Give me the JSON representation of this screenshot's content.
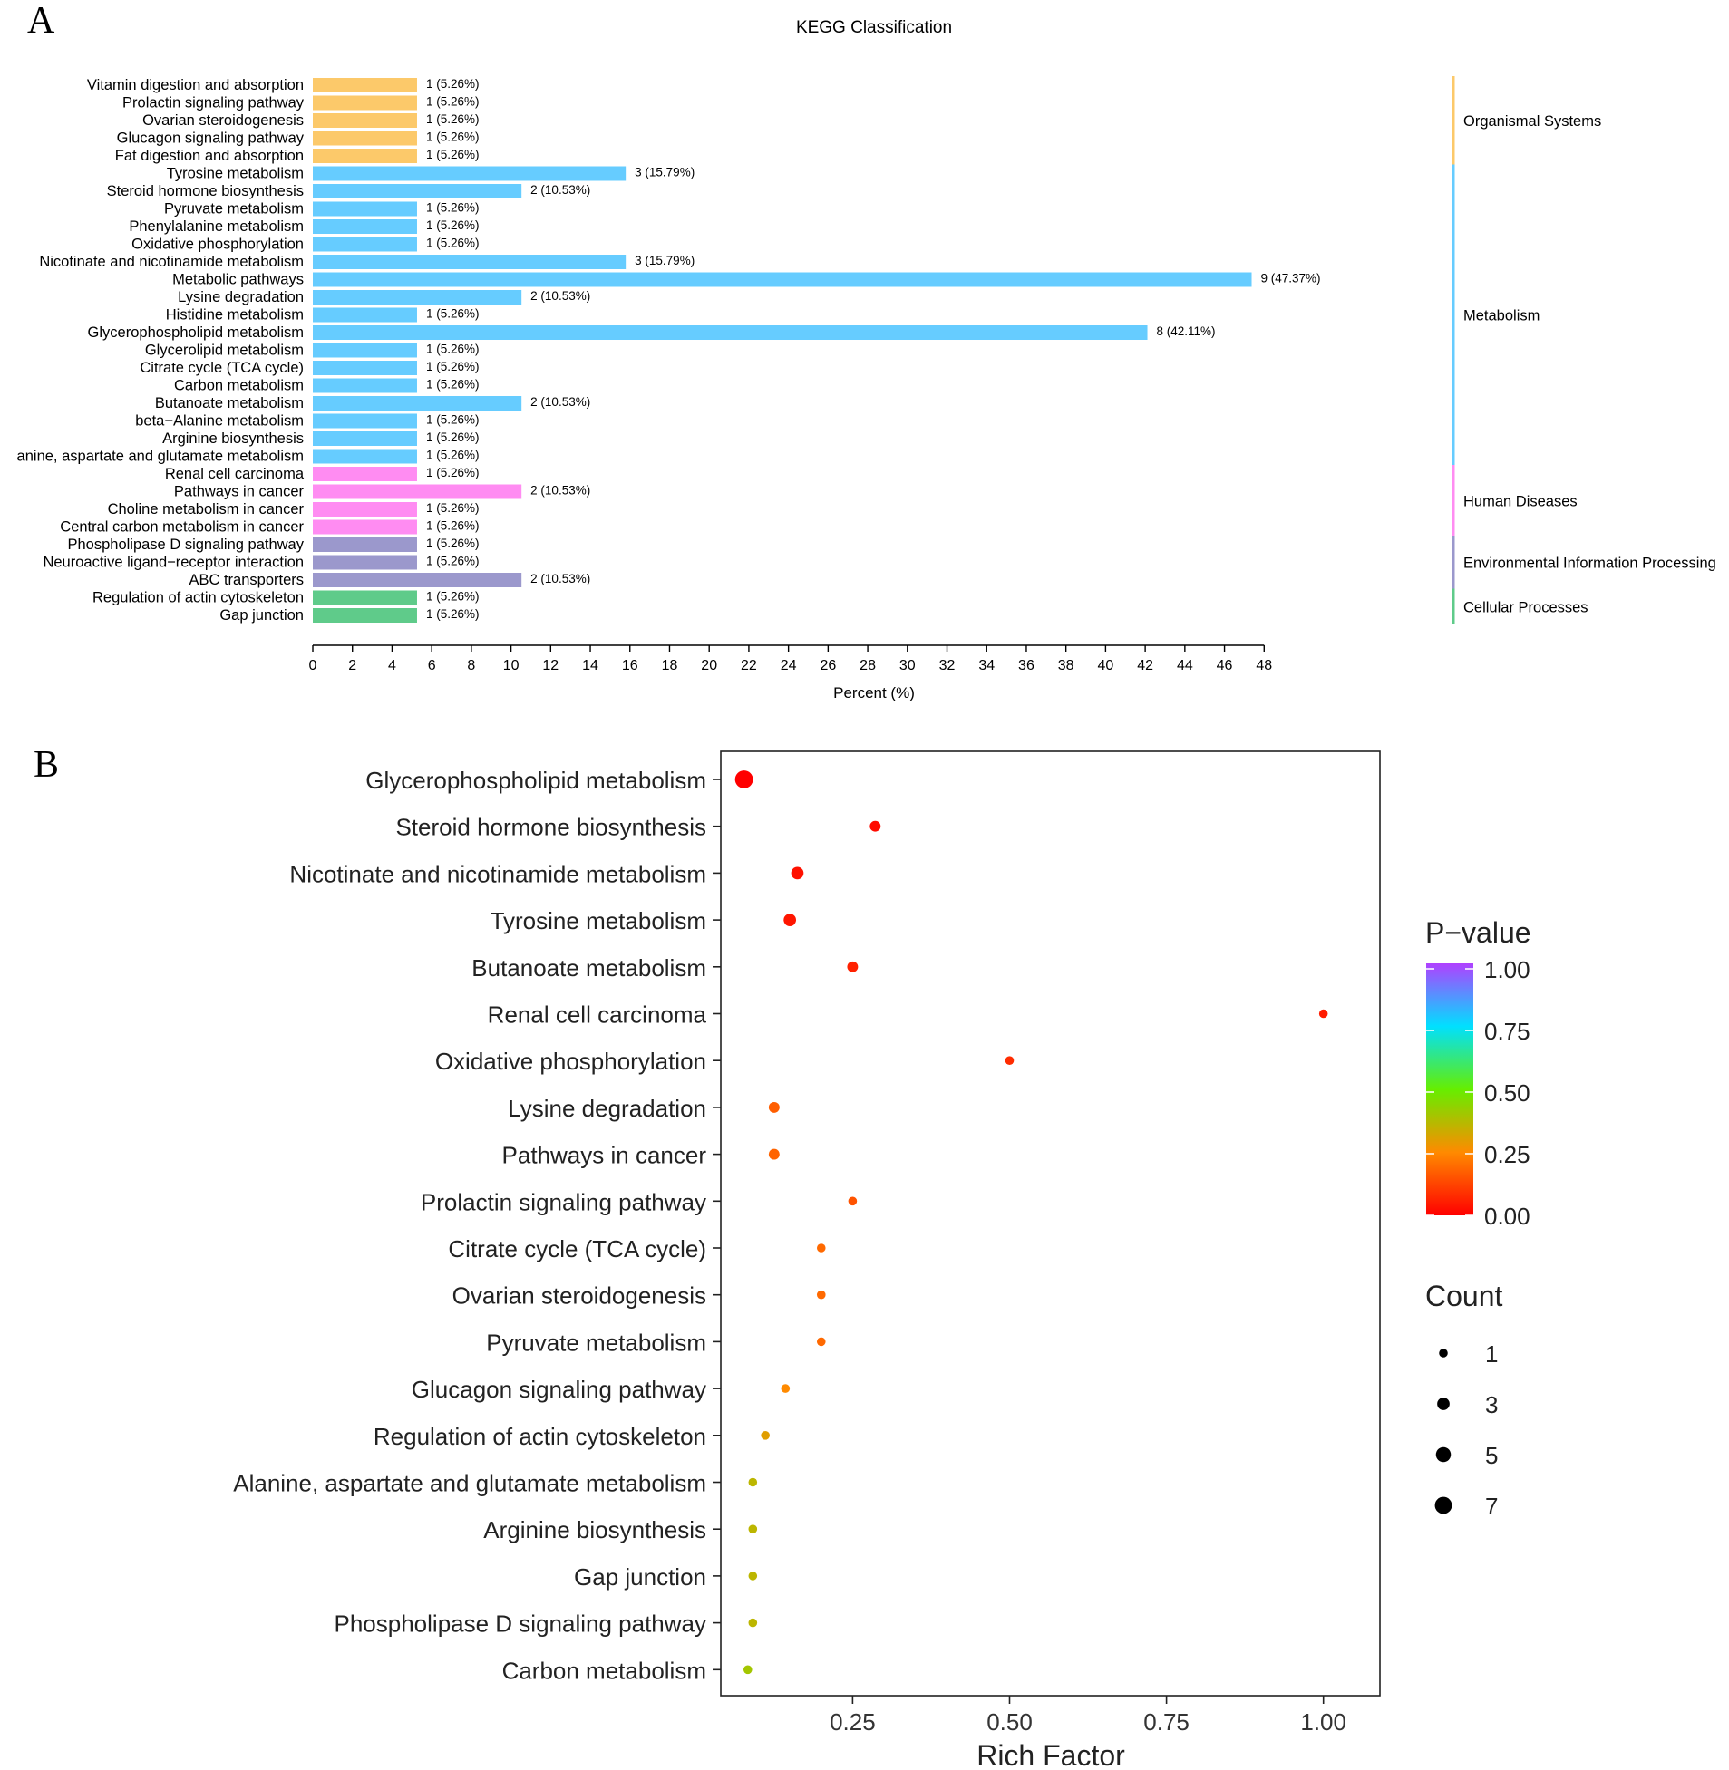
{
  "panels": {
    "a_label": "A",
    "b_label": "B"
  },
  "colors": {
    "organismal": "#FCC96A",
    "metabolism": "#66CCFF",
    "human": "#FF8CF2",
    "environmental": "#9B98CC",
    "cellular": "#5FCB8A"
  },
  "chart_data": [
    {
      "type": "bar",
      "orientation": "horizontal",
      "title": "KEGG Classification",
      "xlabel": "Percent (%)",
      "xlim": [
        0,
        48
      ],
      "xticks": [
        0,
        2,
        4,
        6,
        8,
        10,
        12,
        14,
        16,
        18,
        20,
        22,
        24,
        26,
        28,
        30,
        32,
        34,
        36,
        38,
        40,
        42,
        44,
        46,
        48
      ],
      "groups": [
        {
          "name": "Organismal Systems",
          "color": "#FCC96A"
        },
        {
          "name": "Metabolism",
          "color": "#66CCFF"
        },
        {
          "name": "Human Diseases",
          "color": "#FF8CF2"
        },
        {
          "name": "Environmental Information Processing",
          "color": "#9B98CC"
        },
        {
          "name": "Cellular Processes",
          "color": "#5FCB8A"
        }
      ],
      "bars": [
        {
          "label": "Vitamin digestion and absorption",
          "value": 5.26,
          "text": "1 (5.26%)",
          "group": 0
        },
        {
          "label": "Prolactin signaling pathway",
          "value": 5.26,
          "text": "1 (5.26%)",
          "group": 0
        },
        {
          "label": "Ovarian steroidogenesis",
          "value": 5.26,
          "text": "1 (5.26%)",
          "group": 0
        },
        {
          "label": "Glucagon signaling pathway",
          "value": 5.26,
          "text": "1 (5.26%)",
          "group": 0
        },
        {
          "label": "Fat digestion and absorption",
          "value": 5.26,
          "text": "1 (5.26%)",
          "group": 0
        },
        {
          "label": "Tyrosine metabolism",
          "value": 15.79,
          "text": "3 (15.79%)",
          "group": 1
        },
        {
          "label": "Steroid hormone biosynthesis",
          "value": 10.53,
          "text": "2 (10.53%)",
          "group": 1
        },
        {
          "label": "Pyruvate metabolism",
          "value": 5.26,
          "text": "1 (5.26%)",
          "group": 1
        },
        {
          "label": "Phenylalanine metabolism",
          "value": 5.26,
          "text": "1 (5.26%)",
          "group": 1
        },
        {
          "label": "Oxidative phosphorylation",
          "value": 5.26,
          "text": "1 (5.26%)",
          "group": 1
        },
        {
          "label": "Nicotinate and nicotinamide metabolism",
          "value": 15.79,
          "text": "3 (15.79%)",
          "group": 1
        },
        {
          "label": "Metabolic pathways",
          "value": 47.37,
          "text": "9 (47.37%)",
          "group": 1
        },
        {
          "label": "Lysine degradation",
          "value": 10.53,
          "text": "2 (10.53%)",
          "group": 1
        },
        {
          "label": "Histidine metabolism",
          "value": 5.26,
          "text": "1 (5.26%)",
          "group": 1
        },
        {
          "label": "Glycerophospholipid metabolism",
          "value": 42.11,
          "text": "8 (42.11%)",
          "group": 1
        },
        {
          "label": "Glycerolipid metabolism",
          "value": 5.26,
          "text": "1 (5.26%)",
          "group": 1
        },
        {
          "label": "Citrate cycle (TCA cycle)",
          "value": 5.26,
          "text": "1 (5.26%)",
          "group": 1
        },
        {
          "label": "Carbon metabolism",
          "value": 5.26,
          "text": "1 (5.26%)",
          "group": 1
        },
        {
          "label": "Butanoate metabolism",
          "value": 10.53,
          "text": "2 (10.53%)",
          "group": 1
        },
        {
          "label": "beta−Alanine metabolism",
          "value": 5.26,
          "text": "1 (5.26%)",
          "group": 1
        },
        {
          "label": "Arginine biosynthesis",
          "value": 5.26,
          "text": "1 (5.26%)",
          "group": 1
        },
        {
          "label": "anine, aspartate and glutamate metabolism",
          "value": 5.26,
          "text": "1 (5.26%)",
          "group": 1
        },
        {
          "label": "Renal cell carcinoma",
          "value": 5.26,
          "text": "1 (5.26%)",
          "group": 2
        },
        {
          "label": "Pathways in cancer",
          "value": 10.53,
          "text": "2 (10.53%)",
          "group": 2
        },
        {
          "label": "Choline metabolism in cancer",
          "value": 5.26,
          "text": "1 (5.26%)",
          "group": 2
        },
        {
          "label": "Central carbon metabolism in cancer",
          "value": 5.26,
          "text": "1 (5.26%)",
          "group": 2
        },
        {
          "label": "Phospholipase D signaling pathway",
          "value": 5.26,
          "text": "1 (5.26%)",
          "group": 3
        },
        {
          "label": "Neuroactive ligand−receptor interaction",
          "value": 5.26,
          "text": "1 (5.26%)",
          "group": 3
        },
        {
          "label": "ABC transporters",
          "value": 10.53,
          "text": "2 (10.53%)",
          "group": 3
        },
        {
          "label": "Regulation of actin cytoskeleton",
          "value": 5.26,
          "text": "1 (5.26%)",
          "group": 4
        },
        {
          "label": "Gap junction",
          "value": 5.26,
          "text": "1 (5.26%)",
          "group": 4
        }
      ]
    },
    {
      "type": "scatter",
      "subtype": "bubble",
      "xlabel": "Rich Factor",
      "xlim": [
        0.04,
        1.09
      ],
      "xticks": [
        0.25,
        0.5,
        0.75,
        1.0
      ],
      "xtick_labels": [
        "0.25",
        "0.50",
        "0.75",
        "1.00"
      ],
      "legend_color": {
        "title": "P−value",
        "ticks": [
          "1.00",
          "0.75",
          "0.50",
          "0.25",
          "0.00"
        ],
        "tick_values": [
          1.0,
          0.75,
          0.5,
          0.25,
          0.0
        ]
      },
      "legend_size": {
        "title": "Count",
        "values": [
          1,
          3,
          5,
          7
        ],
        "labels": [
          "1",
          "3",
          "5",
          "7"
        ]
      },
      "points": [
        {
          "label": "Glycerophospholipid metabolism",
          "x": 0.077,
          "count": 8,
          "pvalue": 0.0
        },
        {
          "label": "Steroid hormone biosynthesis",
          "x": 0.286,
          "count": 2,
          "pvalue": 0.02
        },
        {
          "label": "Nicotinate and nicotinamide metabolism",
          "x": 0.162,
          "count": 3,
          "pvalue": 0.03
        },
        {
          "label": "Tyrosine metabolism",
          "x": 0.15,
          "count": 3,
          "pvalue": 0.04
        },
        {
          "label": "Butanoate metabolism",
          "x": 0.25,
          "count": 2,
          "pvalue": 0.06
        },
        {
          "label": "Renal cell carcinoma",
          "x": 1.0,
          "count": 1,
          "pvalue": 0.05
        },
        {
          "label": "Oxidative phosphorylation",
          "x": 0.5,
          "count": 1,
          "pvalue": 0.08
        },
        {
          "label": "Lysine degradation",
          "x": 0.125,
          "count": 2,
          "pvalue": 0.17
        },
        {
          "label": "Pathways in cancer",
          "x": 0.125,
          "count": 2,
          "pvalue": 0.18
        },
        {
          "label": "Prolactin signaling pathway",
          "x": 0.25,
          "count": 1,
          "pvalue": 0.15
        },
        {
          "label": "Citrate cycle (TCA cycle)",
          "x": 0.2,
          "count": 1,
          "pvalue": 0.19
        },
        {
          "label": "Ovarian steroidogenesis",
          "x": 0.2,
          "count": 1,
          "pvalue": 0.19
        },
        {
          "label": "Pyruvate metabolism",
          "x": 0.2,
          "count": 1,
          "pvalue": 0.19
        },
        {
          "label": "Glucagon signaling pathway",
          "x": 0.143,
          "count": 1,
          "pvalue": 0.25
        },
        {
          "label": "Regulation of actin cytoskeleton",
          "x": 0.111,
          "count": 1,
          "pvalue": 0.3
        },
        {
          "label": "Alanine, aspartate and glutamate metabolism",
          "x": 0.091,
          "count": 1,
          "pvalue": 0.36
        },
        {
          "label": "Arginine biosynthesis",
          "x": 0.091,
          "count": 1,
          "pvalue": 0.36
        },
        {
          "label": "Gap junction",
          "x": 0.091,
          "count": 1,
          "pvalue": 0.36
        },
        {
          "label": "Phospholipase D signaling pathway",
          "x": 0.091,
          "count": 1,
          "pvalue": 0.36
        },
        {
          "label": "Carbon metabolism",
          "x": 0.083,
          "count": 1,
          "pvalue": 0.4
        }
      ]
    }
  ]
}
